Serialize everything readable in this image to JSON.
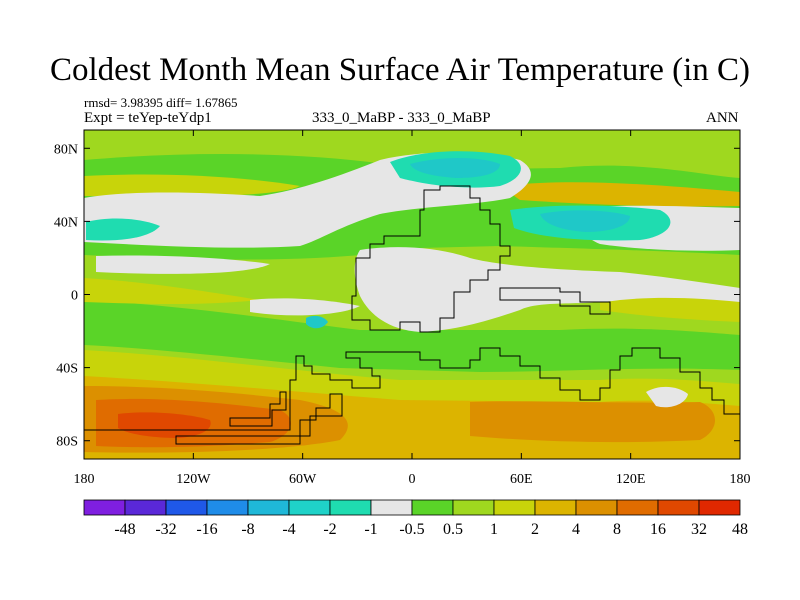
{
  "chart_data": {
    "type": "heatmap",
    "title": "Coldest Month Mean Surface Air Temperature (in C)",
    "stats_line": "rmsd= 3.98395 diff= 1.67865",
    "expt_line": "Expt = teYep-teYdp1",
    "center_label": "333_0_MaBP - 333_0_MaBP",
    "period_label": "ANN",
    "xlim": [
      -180,
      180
    ],
    "ylim": [
      -90,
      90
    ],
    "x_ticks": [
      {
        "value": -180,
        "label": "180"
      },
      {
        "value": -120,
        "label": "120W"
      },
      {
        "value": -60,
        "label": "60W"
      },
      {
        "value": 0,
        "label": "0"
      },
      {
        "value": 60,
        "label": "60E"
      },
      {
        "value": 120,
        "label": "120E"
      },
      {
        "value": 180,
        "label": "180"
      }
    ],
    "y_ticks": [
      {
        "value": 80,
        "label": "80N"
      },
      {
        "value": 40,
        "label": "40N"
      },
      {
        "value": 0,
        "label": "0"
      },
      {
        "value": -40,
        "label": "40S"
      },
      {
        "value": -80,
        "label": "80S"
      }
    ],
    "colorbar": {
      "colors": [
        "#7f1fe0",
        "#5a28d8",
        "#1f58e8",
        "#1f8ce8",
        "#1fb8d8",
        "#1fd2c8",
        "#1fdcb0",
        "#e6e6e6",
        "#5ad428",
        "#9fd81f",
        "#c8d40a",
        "#dcb400",
        "#dc9000",
        "#e06c00",
        "#e04800",
        "#e02800"
      ],
      "labels": [
        "-48",
        "-32",
        "-16",
        "-8",
        "-4",
        "-2",
        "-1",
        "-0.5",
        "0.5",
        "1",
        "2",
        "4",
        "8",
        "16",
        "32",
        "48"
      ]
    },
    "regions": [
      {
        "name": "northern-band-neutral",
        "lon": [
          -178,
          -10
        ],
        "lat": [
          28,
          62
        ],
        "category": "-0.5..0.5",
        "color": "#e6e6e6"
      },
      {
        "name": "tropical-neutral-africa",
        "lon": [
          -10,
          75
        ],
        "lat": [
          -5,
          25
        ],
        "category": "-0.5..0.5",
        "color": "#e6e6e6"
      },
      {
        "name": "arctic-cold-anomaly",
        "lon": [
          -5,
          40
        ],
        "lat": [
          68,
          80
        ],
        "category": "-2..-1",
        "color": "#1fc8c8"
      },
      {
        "name": "asia-cold-anomaly",
        "lon": [
          60,
          110
        ],
        "lat": [
          34,
          46
        ],
        "category": "-2..-1",
        "color": "#1fc8c8"
      },
      {
        "name": "pacific-cold-spot",
        "lon": [
          -178,
          -140
        ],
        "lat": [
          27,
          35
        ],
        "category": "-1..-0.5",
        "color": "#1fdcb0"
      },
      {
        "name": "southern-ocean-warm",
        "lon": [
          -178,
          -40
        ],
        "lat": [
          -85,
          -50
        ],
        "category": "16..32",
        "color": "#e06c00"
      },
      {
        "name": "southern-ocean-hot-spot",
        "lon": [
          -150,
          -110
        ],
        "lat": [
          -82,
          -68
        ],
        "category": "32..48",
        "color": "#e04800"
      }
    ]
  }
}
